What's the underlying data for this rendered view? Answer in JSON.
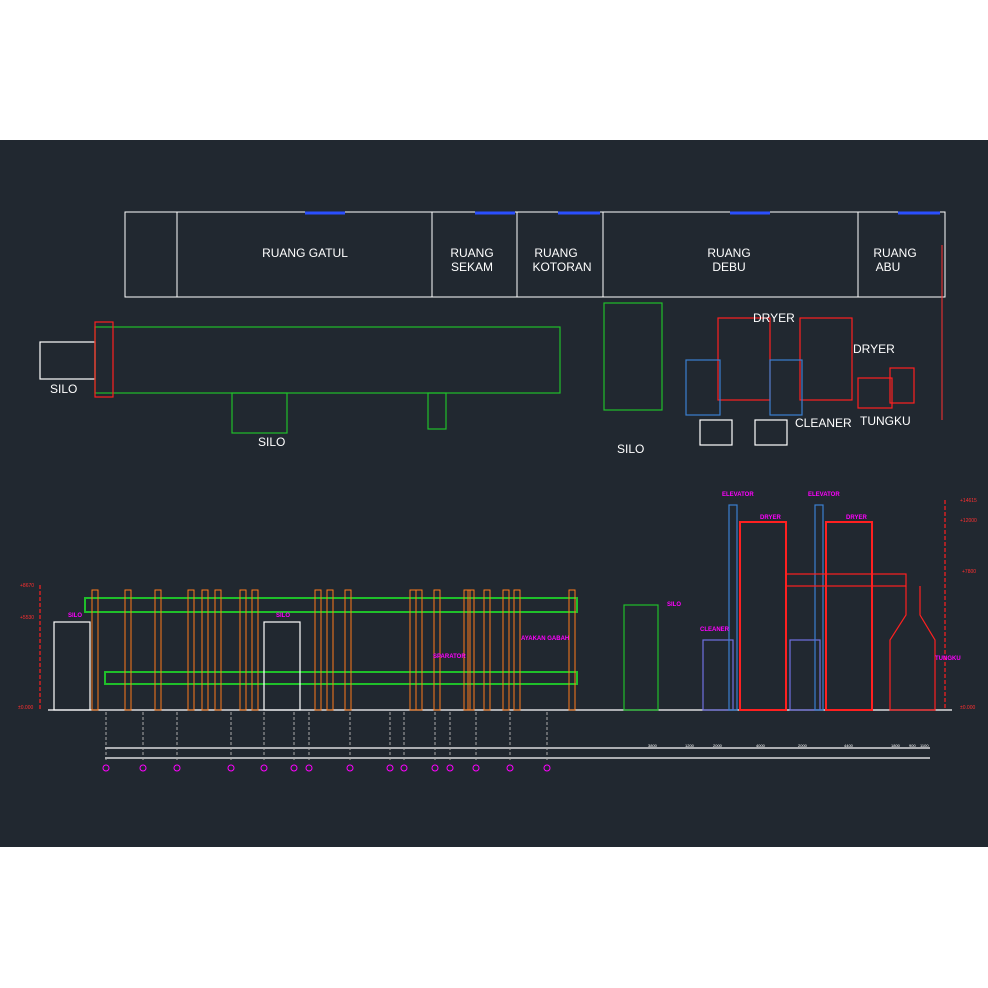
{
  "drawing": {
    "rooms": [
      {
        "line1": "RUANG GATUL",
        "line2": ""
      },
      {
        "line1": "RUANG",
        "line2": "SEKAM"
      },
      {
        "line1": "RUANG",
        "line2": "KOTORAN"
      },
      {
        "line1": "RUANG",
        "line2": "DEBU"
      },
      {
        "line1": "RUANG",
        "line2": "ABU"
      }
    ],
    "plan_labels": {
      "silo_left": "SILO",
      "silo_bottom": "SILO",
      "silo_mid": "SILO",
      "dryer_1": "DRYER",
      "dryer_2": "DRYER",
      "cleaner": "CLEANER",
      "tungku": "TUNGKU"
    },
    "elevation_labels": {
      "elevator_1": "ELEVATOR",
      "elevator_2": "ELEVATOR",
      "dryer_1": "DRYER",
      "dryer_2": "DRYER",
      "silo_right": "SILO",
      "cleaner": "CLEANER",
      "tungku": "TUNGKU",
      "silo_left": "SILO",
      "silo_center": "SILO",
      "separator": "SPARATOR",
      "ayakan": "AYAKAN GABAH"
    },
    "levels_left": [
      "+8670",
      "+5530",
      "±0.000"
    ],
    "levels_right": [
      "+14615",
      "+12000",
      "+7800",
      "±0.000"
    ],
    "dimensions_right": [
      "3800",
      "1200",
      "2000",
      "4000",
      "2000",
      "4400",
      "1800",
      "900",
      "1100"
    ],
    "colors": {
      "background": "#212830",
      "green": "#1fbf2a",
      "orange": "#ff7a1a",
      "red": "#ff2020",
      "blue": "#3a7fd0",
      "magenta": "#ff00ff",
      "white": "#ffffff"
    }
  }
}
